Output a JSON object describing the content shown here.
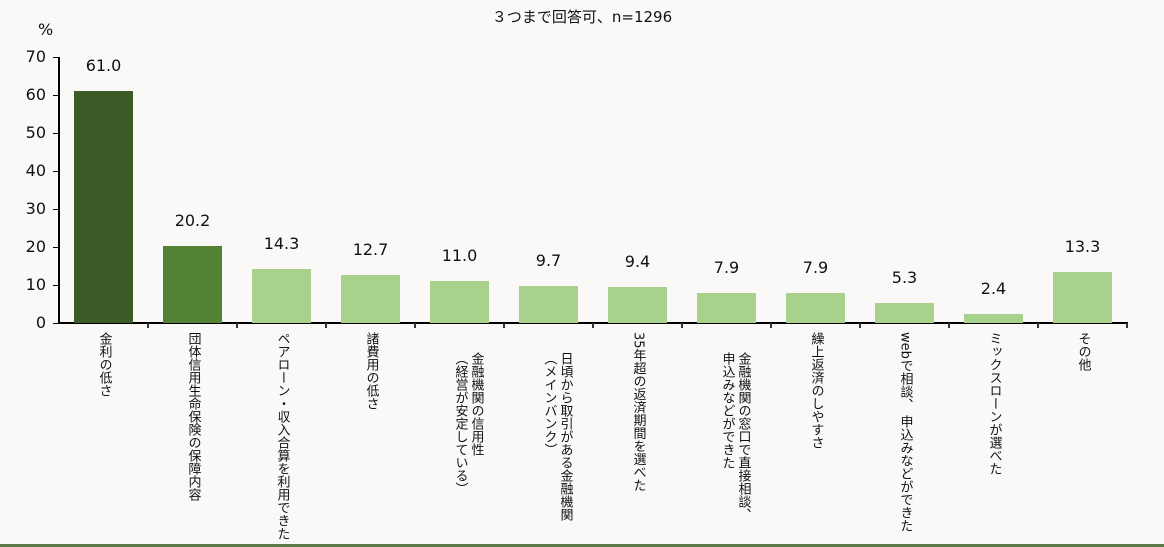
{
  "chart_data": {
    "type": "bar",
    "title": "３つまで回答可、n=1296",
    "xlabel": "",
    "ylabel": "%",
    "ylim": [
      0,
      70
    ],
    "yticks": [
      0,
      10,
      20,
      30,
      40,
      50,
      60,
      70
    ],
    "grid": false,
    "legend": null,
    "categories": [
      "金利の低さ",
      "団体信用生命保険の保障内容",
      "ペアローン・収入合算を利用できた",
      "諸費用の低さ",
      "金融機関の信用性（経営が安定している）",
      "日頃から取引がある金融機関（メインバンク）",
      "35年超の返済期間を選べた",
      "金融機関の窓口で直接相談、申込みなどができた",
      "繰上返済のしやすさ",
      "webで相談、申込みなどができた",
      "ミックスローンが選べた",
      "その他"
    ],
    "values": [
      61.0,
      20.2,
      14.3,
      12.7,
      11.0,
      9.7,
      9.4,
      7.9,
      7.9,
      5.3,
      2.4,
      13.3
    ],
    "value_labels": [
      "61.0",
      "20.2",
      "14.3",
      "12.7",
      "11.0",
      "9.7",
      "9.4",
      "7.9",
      "7.9",
      "5.3",
      "2.4",
      "13.3"
    ],
    "category_lines": [
      [
        "金利の低さ"
      ],
      [
        "団体信用生命保険の保障内容"
      ],
      [
        "ペアローン・収入合算を利用できた"
      ],
      [
        "諸費用の低さ"
      ],
      [
        "金融機関の信用性",
        "（経営が安定している）"
      ],
      [
        "日頃から取引がある金融機関",
        "（メインバンク）"
      ],
      [
        "35年超の返済期間を選べた"
      ],
      [
        "金融機関の窓口で直接相談、",
        "申込みなどができた"
      ],
      [
        "繰上返済のしやすさ"
      ],
      [
        "webで相談、 申込みなどができた"
      ],
      [
        "ミックスローンが選べた"
      ],
      [
        "その他"
      ]
    ],
    "colors": [
      "#3c5a25",
      "#548235",
      "#a9d18e",
      "#a9d18e",
      "#a9d18e",
      "#a9d18e",
      "#a9d18e",
      "#a9d18e",
      "#a9d18e",
      "#a9d18e",
      "#a9d18e",
      "#a9d18e"
    ]
  }
}
